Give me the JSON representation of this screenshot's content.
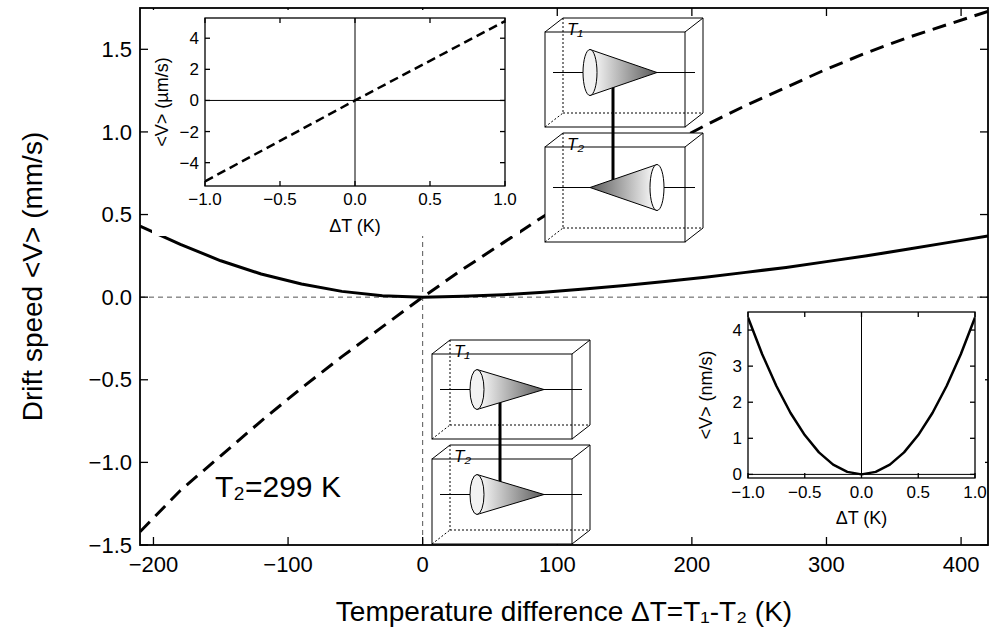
{
  "chart_data": [
    {
      "type": "line",
      "x_label": "Temperature difference ΔT=T₁-T₂ (K)",
      "y_label": "Drift speed <V> (mm/s)",
      "annotations": [
        "T₂=299 K"
      ],
      "x": [
        -210,
        -180,
        -150,
        -120,
        -90,
        -60,
        -30,
        0,
        30,
        60,
        90,
        120,
        150,
        180,
        210,
        240,
        270,
        300,
        330,
        360,
        390,
        420
      ],
      "series": [
        {
          "color": "#000000",
          "line_style": "solid",
          "values": [
            0.43,
            0.32,
            0.22,
            0.14,
            0.08,
            0.035,
            0.008,
            0,
            0.005,
            0.015,
            0.03,
            0.05,
            0.07,
            0.095,
            0.12,
            0.15,
            0.18,
            0.215,
            0.25,
            0.29,
            0.33,
            0.37
          ]
        },
        {
          "color": "#000000",
          "line_style": "dashed",
          "values": [
            -1.42,
            -1.17,
            -0.96,
            -0.75,
            -0.55,
            -0.36,
            -0.18,
            0,
            0.17,
            0.33,
            0.49,
            0.64,
            0.78,
            0.91,
            1.04,
            1.16,
            1.27,
            1.38,
            1.48,
            1.57,
            1.65,
            1.73
          ]
        }
      ],
      "xlim": [
        -210,
        420
      ],
      "ylim": [
        -1.5,
        1.75
      ],
      "xticks": [
        {
          "value": -200,
          "label": "−200"
        },
        {
          "value": -100,
          "label": "−100"
        },
        0,
        100,
        200,
        300,
        400
      ],
      "yticks": [
        {
          "value": -1.5,
          "label": "−1.5"
        },
        {
          "value": -1,
          "label": "−1.0"
        },
        {
          "value": -0.5,
          "label": "−0.5"
        },
        {
          "value": 0,
          "label": "0.0"
        },
        {
          "value": 0.5,
          "label": "0.5"
        },
        {
          "value": 1,
          "label": "1.0"
        },
        {
          "value": 1.5,
          "label": "1.5"
        }
      ],
      "grid": false
    },
    {
      "type": "line",
      "x_label": "ΔT (K)",
      "y_label": "<V> (µm/s)",
      "x": [
        -1,
        -0.5,
        0,
        0.5,
        1
      ],
      "series": [
        {
          "color": "#000000",
          "line_style": "dashed",
          "values": [
            -5.2,
            -2.6,
            0,
            2.55,
            5.1
          ]
        }
      ],
      "xlim": [
        -1,
        1
      ],
      "ylim": [
        -5.5,
        5.3
      ],
      "xticks": [
        {
          "value": -1,
          "label": "−1.0"
        },
        {
          "value": -0.5,
          "label": "−0.5"
        },
        {
          "value": 0,
          "label": "0.0"
        },
        {
          "value": 0.5,
          "label": "0.5"
        },
        {
          "value": 1,
          "label": "1.0"
        }
      ],
      "yticks": [
        {
          "value": -4,
          "label": "−4"
        },
        {
          "value": -2,
          "label": "−2"
        },
        0,
        2,
        4
      ],
      "grid": false
    },
    {
      "type": "line",
      "x_label": "ΔT (K)",
      "y_label": "<V> (nm/s)",
      "x": [
        -1,
        -0.875,
        -0.75,
        -0.625,
        -0.5,
        -0.375,
        -0.25,
        -0.125,
        0,
        0.125,
        0.25,
        0.375,
        0.5,
        0.625,
        0.75,
        0.875,
        1
      ],
      "series": [
        {
          "color": "#000000",
          "line_style": "solid",
          "values": [
            4.35,
            3.33,
            2.45,
            1.7,
            1.09,
            0.61,
            0.27,
            0.07,
            0,
            0.07,
            0.27,
            0.61,
            1.09,
            1.7,
            2.45,
            3.33,
            4.35
          ]
        }
      ],
      "xlim": [
        -1,
        1
      ],
      "ylim": [
        -0.1,
        4.5
      ],
      "xticks": [
        {
          "value": -1,
          "label": "−1.0"
        },
        {
          "value": -0.5,
          "label": "−0.5"
        },
        {
          "value": 0,
          "label": "0.0"
        },
        {
          "value": 0.5,
          "label": "0.5"
        },
        {
          "value": 1,
          "label": "1.0"
        }
      ],
      "yticks": [
        0,
        1,
        2,
        3,
        4
      ],
      "grid": false
    }
  ],
  "diagrams": [
    {
      "labels": [
        "T₁",
        "T₂"
      ]
    },
    {
      "labels": [
        "T₁",
        "T₂"
      ]
    }
  ]
}
